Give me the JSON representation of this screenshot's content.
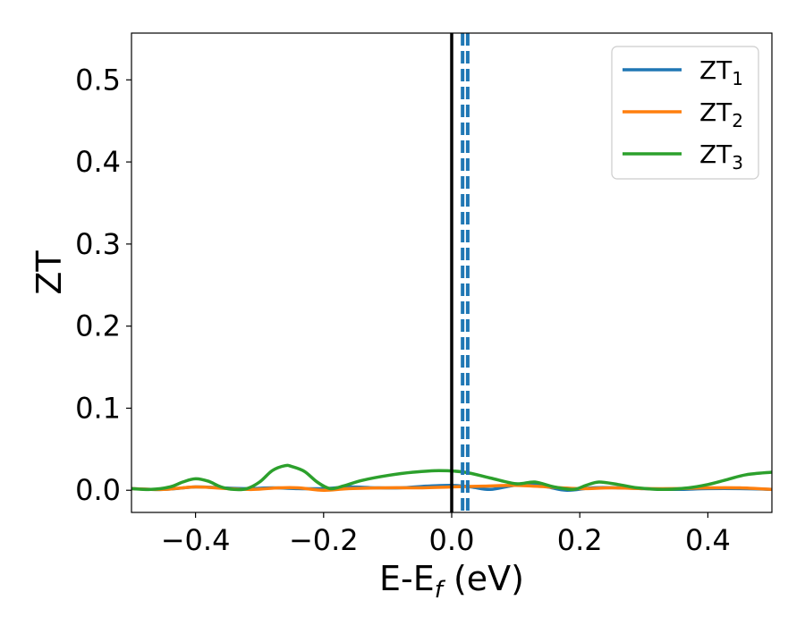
{
  "chart_data": {
    "type": "line",
    "xlabel": "E-E",
    "xlabel_sub": "f",
    "xlabel_unit": " (eV)",
    "ylabel": "ZT",
    "xlim": [
      -0.5,
      0.5
    ],
    "ylim": [
      -0.027,
      0.557
    ],
    "x_ticks": [
      -0.4,
      -0.2,
      0.0,
      0.2,
      0.4
    ],
    "x_tick_labels": [
      "−0.4",
      "−0.2",
      "0.0",
      "0.2",
      "0.4"
    ],
    "y_ticks": [
      0.0,
      0.1,
      0.2,
      0.3,
      0.4,
      0.5
    ],
    "y_tick_labels": [
      "0.0",
      "0.1",
      "0.2",
      "0.3",
      "0.4",
      "0.5"
    ],
    "grid": false,
    "legend_position": "top-right",
    "series": [
      {
        "name": "ZT",
        "name_sub": "1",
        "color": "#1f77b4",
        "x": [
          -0.5,
          -0.45,
          -0.4,
          -0.36,
          -0.32,
          -0.28,
          -0.24,
          -0.2,
          -0.16,
          -0.12,
          -0.08,
          -0.04,
          0.0,
          0.03,
          0.06,
          0.09,
          0.12,
          0.15,
          0.18,
          0.22,
          0.26,
          0.3,
          0.35,
          0.4,
          0.45,
          0.5
        ],
        "y": [
          0.002,
          0.001,
          0.004,
          0.003,
          0.002,
          0.003,
          0.002,
          0.002,
          0.004,
          0.003,
          0.003,
          0.005,
          0.006,
          0.004,
          0.001,
          0.005,
          0.008,
          0.004,
          0.0,
          0.003,
          0.003,
          0.002,
          0.001,
          0.002,
          0.002,
          0.001
        ]
      },
      {
        "name": "ZT",
        "name_sub": "2",
        "color": "#ff7f0e",
        "x": [
          -0.5,
          -0.45,
          -0.4,
          -0.35,
          -0.31,
          -0.27,
          -0.24,
          -0.2,
          -0.16,
          -0.1,
          -0.05,
          0.0,
          0.05,
          0.1,
          0.15,
          0.2,
          0.25,
          0.3,
          0.35,
          0.4,
          0.45,
          0.5
        ],
        "y": [
          0.002,
          0.001,
          0.004,
          0.002,
          0.001,
          0.003,
          0.003,
          0.0,
          0.002,
          0.003,
          0.003,
          0.004,
          0.005,
          0.006,
          0.004,
          0.002,
          0.003,
          0.002,
          0.002,
          0.003,
          0.003,
          0.001
        ]
      },
      {
        "name": "ZT",
        "name_sub": "3",
        "color": "#2ca02c",
        "x": [
          -0.5,
          -0.47,
          -0.44,
          -0.42,
          -0.4,
          -0.38,
          -0.36,
          -0.34,
          -0.32,
          -0.3,
          -0.28,
          -0.26,
          -0.25,
          -0.23,
          -0.21,
          -0.19,
          -0.17,
          -0.14,
          -0.1,
          -0.06,
          -0.02,
          0.02,
          0.06,
          0.1,
          0.13,
          0.16,
          0.19,
          0.21,
          0.23,
          0.26,
          0.29,
          0.33,
          0.37,
          0.4,
          0.43,
          0.46,
          0.5
        ],
        "y": [
          0.002,
          0.001,
          0.004,
          0.01,
          0.014,
          0.011,
          0.004,
          0.001,
          0.002,
          0.01,
          0.024,
          0.03,
          0.029,
          0.023,
          0.01,
          0.002,
          0.005,
          0.012,
          0.018,
          0.022,
          0.024,
          0.022,
          0.015,
          0.008,
          0.01,
          0.004,
          0.001,
          0.006,
          0.01,
          0.007,
          0.003,
          0.001,
          0.003,
          0.007,
          0.013,
          0.019,
          0.022
        ]
      }
    ],
    "vertical_lines": [
      {
        "x": 0.0,
        "color": "#000000",
        "style": "solid"
      },
      {
        "x": 0.017,
        "color": "#1f77b4",
        "style": "dashed"
      },
      {
        "x": 0.025,
        "color": "#1f77b4",
        "style": "dashed"
      }
    ]
  }
}
